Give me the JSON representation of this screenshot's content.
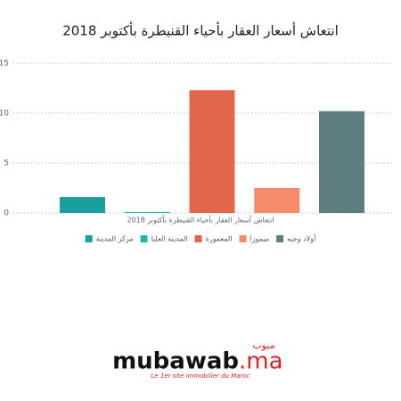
{
  "chart_data": {
    "type": "bar",
    "title": "انتعاش أسعار العقار بأحياء القنيطرة بأكتوبر 2018",
    "categories": [
      "انتعاش أسعار العقار بأحياء القنيطرة بأكتوبر 2018"
    ],
    "series": [
      {
        "name": "مركز المدينة",
        "color": "#1a9e9e",
        "values": [
          1.6
        ]
      },
      {
        "name": "المدينة العليا",
        "color": "#22b5b5",
        "values": [
          0.1
        ]
      },
      {
        "name": "المعمورة",
        "color": "#e2674a",
        "values": [
          12.3
        ]
      },
      {
        "name": "ميموزا",
        "color": "#f58b6b",
        "values": [
          2.5
        ]
      },
      {
        "name": "أولاد وجيه",
        "color": "#5e7d80",
        "values": [
          10.2
        ]
      }
    ],
    "ylim": [
      0,
      15
    ],
    "yticks": [
      0,
      5,
      10,
      15
    ],
    "grid": true,
    "legend": "bottom"
  },
  "branding": {
    "arabic": "مبوب",
    "name": "mubawab",
    "suffix": ".ma",
    "tagline": "Le 1er site immobilier du Maroc"
  }
}
